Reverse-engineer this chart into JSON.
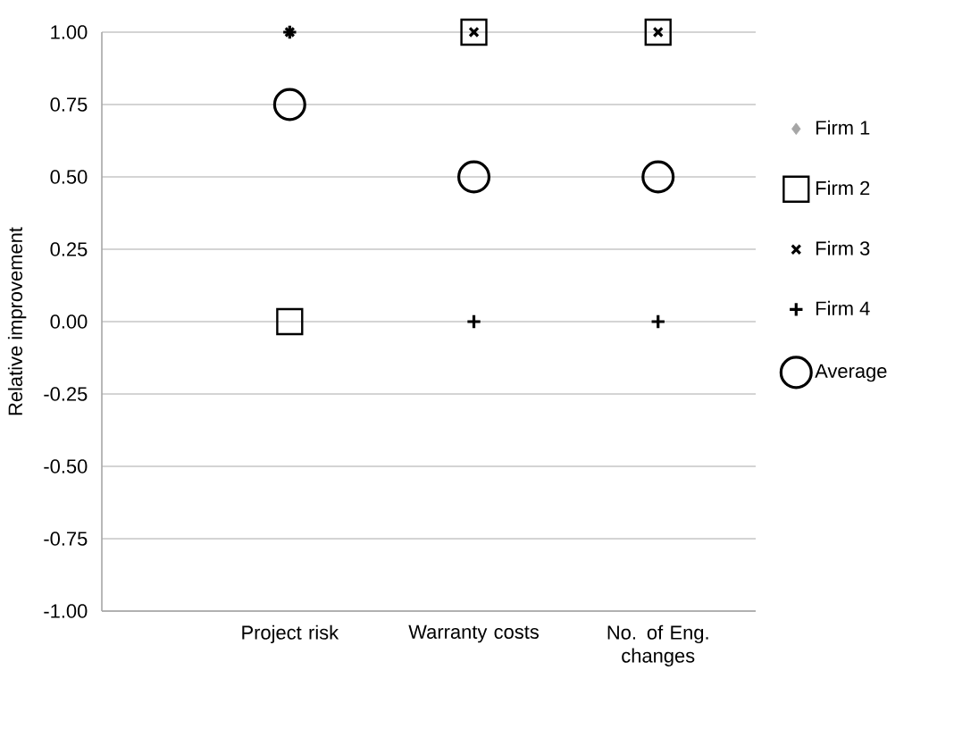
{
  "chart_data": {
    "type": "scatter",
    "ylabel": "Relative improvement",
    "categories": [
      "Project risk",
      "Warranty costs",
      "No. of Eng. changes"
    ],
    "ylim": [
      -1,
      1
    ],
    "yticks": [
      {
        "value": -1,
        "label": "-1.00"
      },
      {
        "value": -0.75,
        "label": "-0.75"
      },
      {
        "value": -0.5,
        "label": "-0.50"
      },
      {
        "value": -0.25,
        "label": "-0.25"
      },
      {
        "value": 0,
        "label": "0.00"
      },
      {
        "value": 0.25,
        "label": "0.25"
      },
      {
        "value": 0.5,
        "label": "0.50"
      },
      {
        "value": 0.75,
        "label": "0.75"
      },
      {
        "value": 1,
        "label": "1.00"
      }
    ],
    "grid": "y",
    "legend": "right",
    "series": [
      {
        "name": "Firm 1",
        "color": "#a6a6a6",
        "marker": "diamond",
        "values": [
          null,
          null,
          null
        ]
      },
      {
        "name": "Firm 2",
        "color": "#000000",
        "marker": "square",
        "values": [
          0,
          1,
          1
        ]
      },
      {
        "name": "Firm 3",
        "color": "#000000",
        "marker": "cross",
        "values": [
          1,
          1,
          1
        ]
      },
      {
        "name": "Firm 4",
        "color": "#000000",
        "marker": "plus",
        "values": [
          1,
          0,
          0
        ]
      },
      {
        "name": "Average",
        "color": "#000000",
        "marker": "circle",
        "values": [
          0.75,
          0.5,
          0.5
        ]
      }
    ]
  }
}
